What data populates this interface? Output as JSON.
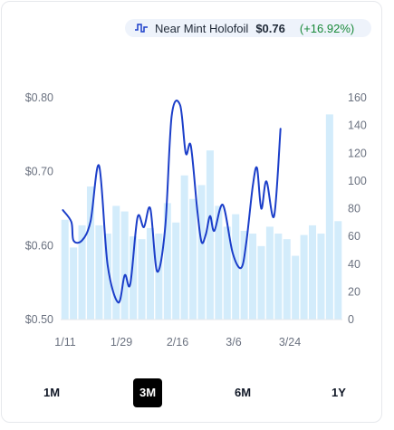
{
  "legend": {
    "icon": "step-line-icon",
    "name": "Near Mint Holofoil",
    "price": "$0.76",
    "change": "(+16.92%)",
    "change_color": "#1a8a3a"
  },
  "ranges": {
    "items": [
      "1M",
      "3M",
      "6M",
      "1Y"
    ],
    "active": "3M"
  },
  "colors": {
    "line": "#1b3ec9",
    "bars": "#d3ecfb",
    "active_range_bg": "#000000"
  },
  "chart_data": {
    "type": "bar",
    "title": "",
    "x_tick_labels": [
      "1/11",
      "1/29",
      "2/16",
      "3/6",
      "3/24"
    ],
    "left_axis": {
      "ticks": [
        "$0.80",
        "$0.70",
        "$0.60",
        "$0.50"
      ],
      "range": [
        0.5,
        0.8
      ]
    },
    "right_axis": {
      "ticks": [
        "160",
        "140",
        "120",
        "100",
        "80",
        "60",
        "40",
        "20",
        "0"
      ],
      "range": [
        0,
        160
      ]
    },
    "series": [
      {
        "type": "bar",
        "axis": "right",
        "values": [
          72,
          52,
          68,
          96,
          68,
          62,
          82,
          78,
          60,
          58,
          66,
          62,
          84,
          70,
          104,
          87,
          97,
          122,
          82,
          67,
          76,
          64,
          62,
          53,
          67,
          62,
          58,
          46,
          61,
          68,
          62,
          148,
          71
        ]
      },
      {
        "type": "line",
        "axis": "left",
        "points": [
          [
            0.5,
            0.648
          ],
          [
            2.5,
            0.632
          ],
          [
            3.0,
            0.607
          ],
          [
            5.0,
            0.607
          ],
          [
            7.0,
            0.633
          ],
          [
            9.0,
            0.708
          ],
          [
            11.0,
            0.574
          ],
          [
            13.5,
            0.523
          ],
          [
            15.0,
            0.56
          ],
          [
            16.3,
            0.548
          ],
          [
            18.0,
            0.638
          ],
          [
            19.5,
            0.625
          ],
          [
            21.0,
            0.65
          ],
          [
            22.6,
            0.565
          ],
          [
            24.5,
            0.625
          ],
          [
            26.0,
            0.775
          ],
          [
            28.0,
            0.79
          ],
          [
            29.3,
            0.725
          ],
          [
            30.5,
            0.735
          ],
          [
            32.0,
            0.648
          ],
          [
            33.0,
            0.605
          ],
          [
            34.0,
            0.615
          ],
          [
            35.0,
            0.64
          ],
          [
            36.0,
            0.62
          ],
          [
            38.0,
            0.655
          ],
          [
            40.3,
            0.59
          ],
          [
            42.3,
            0.57
          ],
          [
            43.5,
            0.605
          ],
          [
            45.0,
            0.68
          ],
          [
            46.0,
            0.705
          ],
          [
            47.0,
            0.65
          ],
          [
            48.2,
            0.687
          ],
          [
            50.0,
            0.64
          ],
          [
            51.5,
            0.758
          ]
        ]
      }
    ],
    "grid": false,
    "legend_position": "top-right"
  }
}
